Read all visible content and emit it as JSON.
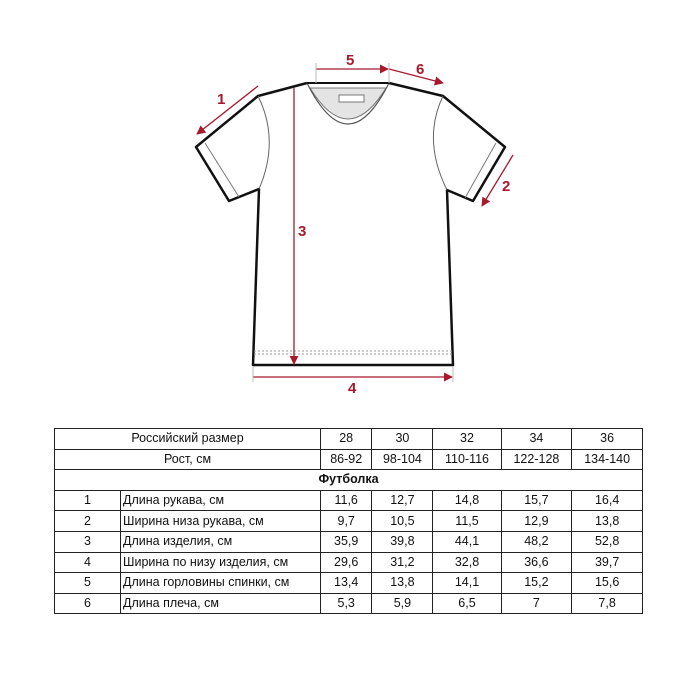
{
  "diagram": {
    "accent_color": "#a8192e",
    "labels": [
      "1",
      "2",
      "3",
      "4",
      "5",
      "6"
    ]
  },
  "table": {
    "header": {
      "size_label": "Российский размер",
      "sizes": [
        "28",
        "30",
        "32",
        "34",
        "36"
      ],
      "height_label": "Рост, см",
      "heights": [
        "86-92",
        "98-104",
        "110-116",
        "122-128",
        "134-140"
      ]
    },
    "section_title": "Футболка",
    "rows": [
      {
        "num": "1",
        "name": "Длина рукава, см",
        "values": [
          "11,6",
          "12,7",
          "14,8",
          "15,7",
          "16,4"
        ]
      },
      {
        "num": "2",
        "name": "Ширина низа рукава, см",
        "values": [
          "9,7",
          "10,5",
          "11,5",
          "12,9",
          "13,8"
        ]
      },
      {
        "num": "3",
        "name": "Длина изделия, см",
        "values": [
          "35,9",
          "39,8",
          "44,1",
          "48,2",
          "52,8"
        ]
      },
      {
        "num": "4",
        "name": "Ширина по низу изделия, см",
        "values": [
          "29,6",
          "31,2",
          "32,8",
          "36,6",
          "39,7"
        ]
      },
      {
        "num": "5",
        "name": "Длина горловины спинки, см",
        "values": [
          "13,4",
          "13,8",
          "14,1",
          "15,2",
          "15,6"
        ]
      },
      {
        "num": "6",
        "name": "Длина плеча, см",
        "values": [
          "5,3",
          "5,9",
          "6,5",
          "7",
          "7,8"
        ]
      }
    ]
  }
}
